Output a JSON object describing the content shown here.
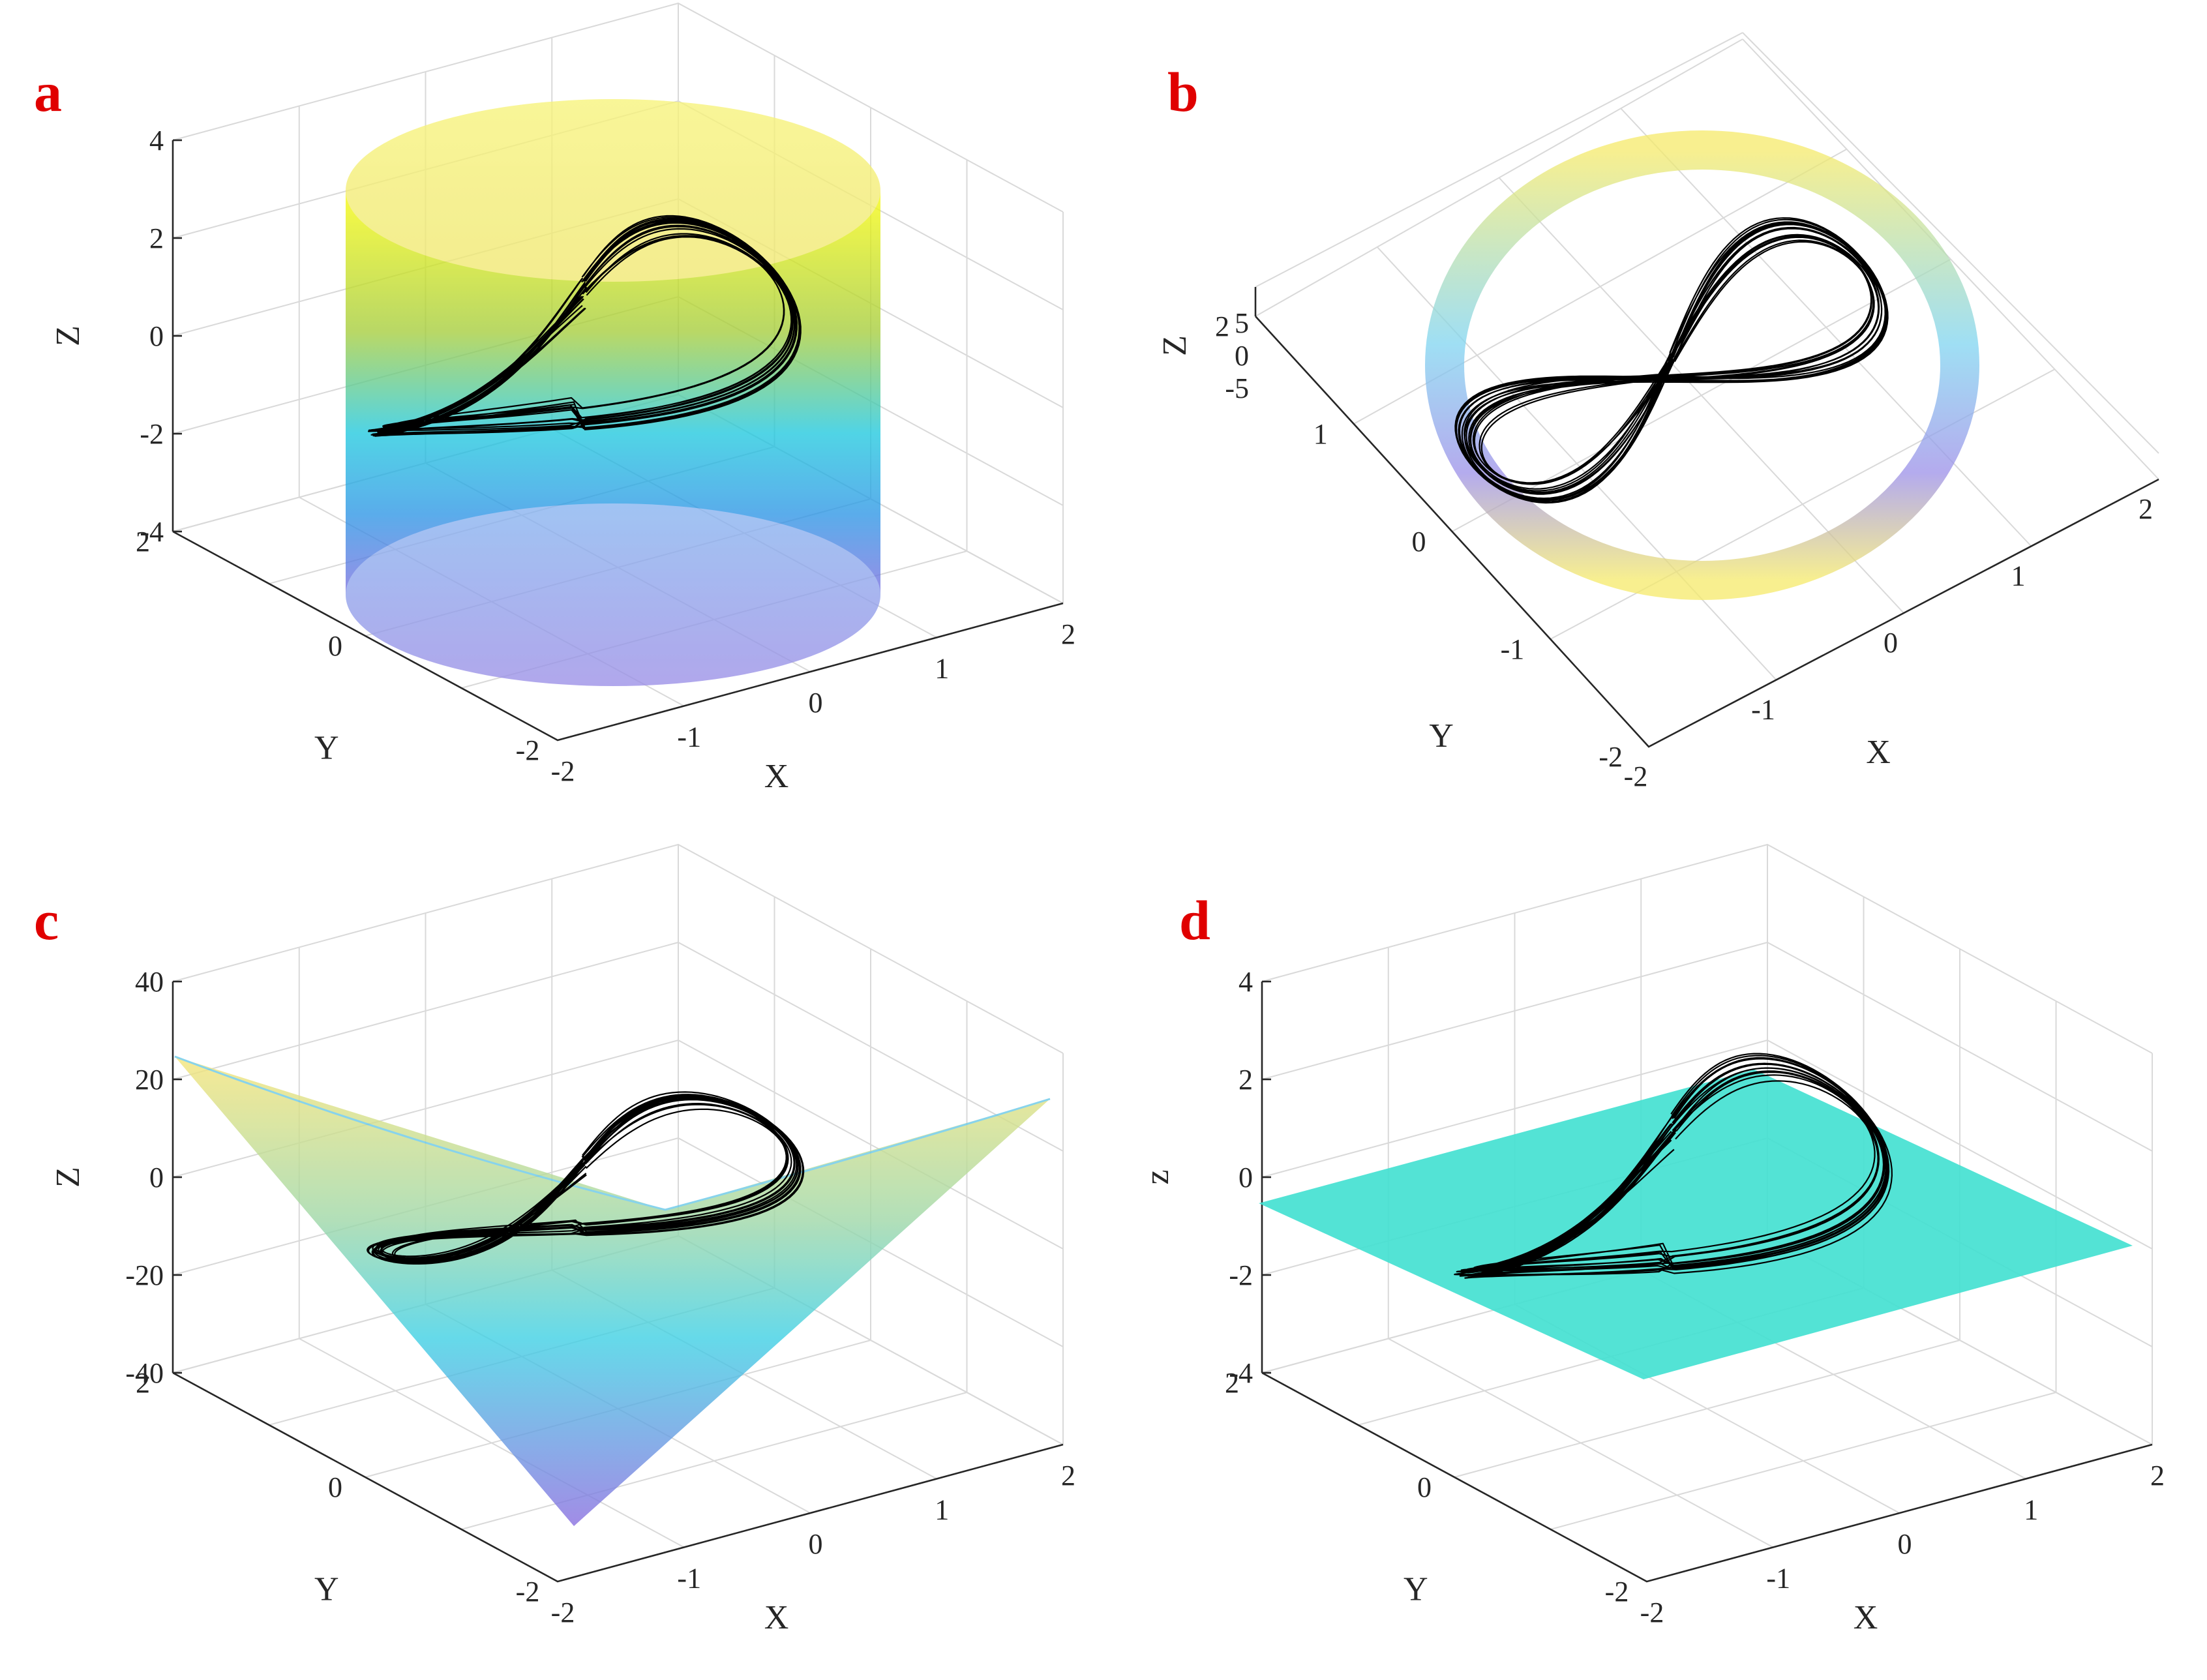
{
  "colors": {
    "panel_letter": "#e00000",
    "trajectory": "#000000",
    "parula_low": "#3e26a8",
    "parula_mid": "#1fc8de",
    "parula_high": "#f9fb0e",
    "plane": "#40e0d0",
    "grid": "#d9d9d9"
  },
  "chart_data": [
    {
      "type": "scatter",
      "panel_letter": "a",
      "description": "3D chaotic attractor with cylinder surface",
      "surface": "cylinder",
      "xlabel": "X",
      "ylabel": "Y",
      "zlabel": "Z",
      "xlim": [
        -2,
        2
      ],
      "ylim": [
        -2,
        2
      ],
      "zlim": [
        -4,
        4
      ],
      "x_ticks": [
        "-2",
        "-1",
        "0",
        "1",
        "2"
      ],
      "y_ticks": [
        "-2",
        "0",
        "2"
      ],
      "z_ticks": [
        "-4",
        "-2",
        "0",
        "2",
        "4"
      ],
      "grid": true
    },
    {
      "type": "scatter",
      "panel_letter": "b",
      "surface": "cylinder",
      "xlabel": "X",
      "ylabel": "Y",
      "zlabel": "Z",
      "xlim": [
        -2,
        2
      ],
      "ylim": [
        -2,
        2
      ],
      "zlim": [
        -5,
        5
      ],
      "x_ticks": [
        "-2",
        "-1",
        "0",
        "1",
        "2"
      ],
      "y_ticks": [
        "-2",
        "-1",
        "0",
        "1",
        "2"
      ],
      "z_ticks": [
        "-5",
        "0",
        "5"
      ],
      "grid": true
    },
    {
      "type": "scatter",
      "panel_letter": "c",
      "surface": "saddle",
      "xlabel": "X",
      "ylabel": "Y",
      "zlabel": "Z",
      "xlim": [
        -2,
        2
      ],
      "ylim": [
        -2,
        2
      ],
      "zlim": [
        -40,
        40
      ],
      "x_ticks": [
        "-2",
        "-1",
        "0",
        "1",
        "2"
      ],
      "y_ticks": [
        "-2",
        "0",
        "2"
      ],
      "z_ticks": [
        "-40",
        "-20",
        "0",
        "20",
        "40"
      ],
      "grid": true
    },
    {
      "type": "scatter",
      "panel_letter": "d",
      "surface": "plane z=0",
      "xlabel": "X",
      "ylabel": "Y",
      "zlabel": "z",
      "xlim": [
        -2,
        2
      ],
      "ylim": [
        -2,
        2
      ],
      "zlim": [
        -4,
        4
      ],
      "x_ticks": [
        "-2",
        "-1",
        "0",
        "1",
        "2"
      ],
      "y_ticks": [
        "-2",
        "0",
        "2"
      ],
      "z_ticks": [
        "-4",
        "-2",
        "0",
        "2",
        "4"
      ],
      "grid": true
    }
  ]
}
